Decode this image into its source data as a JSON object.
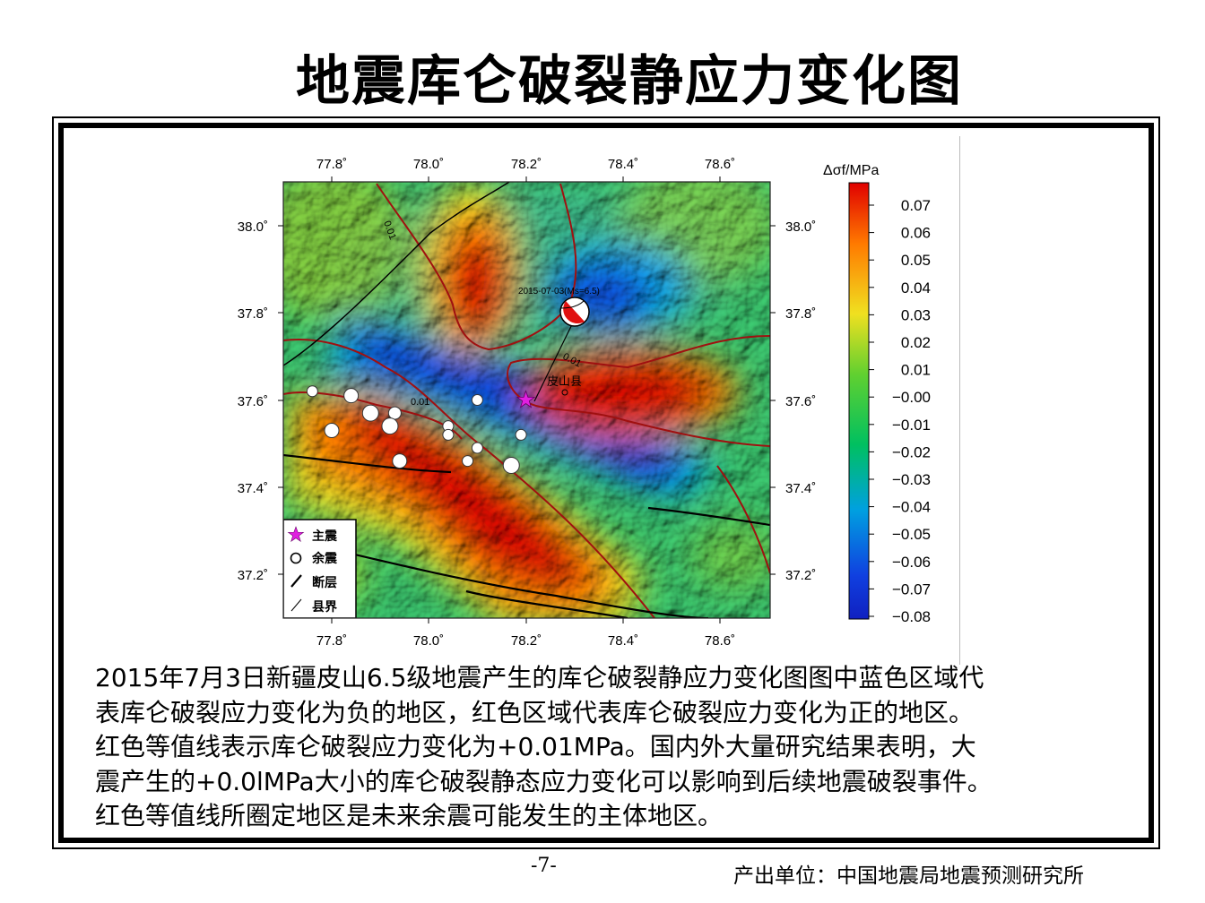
{
  "title": "地震库仑破裂静应力变化图",
  "map": {
    "x_ticks": [
      "77.8˚",
      "78.0˚",
      "78.2˚",
      "78.4˚",
      "78.6˚"
    ],
    "y_ticks": [
      "38.0˚",
      "37.8˚",
      "37.6˚",
      "37.4˚",
      "37.2˚"
    ],
    "contour_labels": [
      "0.01",
      "0.01",
      "0.01"
    ],
    "event_label": "2015-07-03(Ms=6.5)",
    "county_label": "皮山县",
    "legend": [
      {
        "icon": "star-icon",
        "label": "主震"
      },
      {
        "icon": "circle-icon",
        "label": "余震"
      },
      {
        "icon": "fault-line-icon",
        "label": "断层"
      },
      {
        "icon": "county-line-icon",
        "label": "县界"
      }
    ],
    "colorbar": {
      "title": "Δσf/MPa",
      "ticks": [
        "0.07",
        "0.06",
        "0.05",
        "0.04",
        "0.03",
        "0.02",
        "0.01",
        "−0.00",
        "−0.01",
        "−0.02",
        "−0.03",
        "−0.04",
        "−0.05",
        "−0.06",
        "−0.07",
        "−0.08"
      ],
      "colors": [
        "#e00000",
        "#ff7a00",
        "#f0e020",
        "#60d030",
        "#00c060",
        "#00a0e0",
        "#1040e0",
        "#1020c0"
      ]
    },
    "mainshock": {
      "lon": 78.2,
      "lat": 37.6
    },
    "aftershocks": [
      {
        "lon": 77.76,
        "lat": 37.62
      },
      {
        "lon": 77.84,
        "lat": 37.61
      },
      {
        "lon": 77.88,
        "lat": 37.57
      },
      {
        "lon": 77.93,
        "lat": 37.57
      },
      {
        "lon": 77.8,
        "lat": 37.53
      },
      {
        "lon": 77.92,
        "lat": 37.54
      },
      {
        "lon": 78.04,
        "lat": 37.54
      },
      {
        "lon": 78.04,
        "lat": 37.52
      },
      {
        "lon": 78.1,
        "lat": 37.6
      },
      {
        "lon": 78.1,
        "lat": 37.49
      },
      {
        "lon": 78.08,
        "lat": 37.46
      },
      {
        "lon": 77.94,
        "lat": 37.46
      },
      {
        "lon": 78.17,
        "lat": 37.45
      },
      {
        "lon": 78.19,
        "lat": 37.52
      }
    ]
  },
  "caption_lines": [
    "2015年7月3日新疆皮山6.5级地震产生的库仑破裂静应力变化图图中蓝色区域代",
    "表库仑破裂应力变化为负的地区，红色区域代表库仑破裂应力变化为正的地区。",
    "红色等值线表示库仑破裂应力变化为+0.01MPa。国内外大量研究结果表明，大",
    "震产生的+0.0lMPa大小的库仑破裂静态应力变化可以影响到后续地震破裂事件。",
    "红色等值线所圈定地区是未来余震可能发生的主体地区。"
  ],
  "page_number": "-7-",
  "producer": "产出单位：中国地震局地震预测研究所"
}
